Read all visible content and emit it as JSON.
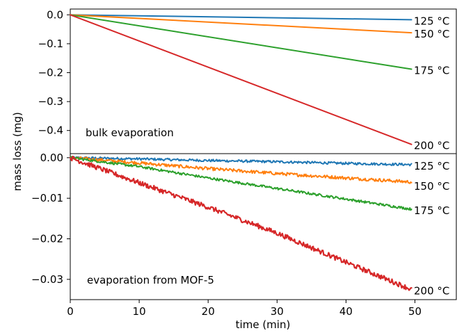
{
  "chart_data": {
    "type": "line",
    "xlabel": "time (min)",
    "ylabel": "mass loss (mg)",
    "x_ticks": [
      "0",
      "10",
      "20",
      "30",
      "40",
      "50"
    ],
    "xlim": [
      0,
      56
    ],
    "panels": [
      {
        "annotation": "bulk evaporation",
        "ylim": [
          -0.48,
          0.02
        ],
        "y_ticks": [
          {
            "value": 0.0,
            "label": "0.0"
          },
          {
            "value": -0.1,
            "label": "−0.1"
          },
          {
            "value": -0.2,
            "label": "−0.2"
          },
          {
            "value": -0.3,
            "label": "−0.3"
          },
          {
            "value": -0.4,
            "label": "−0.4"
          }
        ],
        "noise": 0,
        "series": [
          {
            "name": "125 °C",
            "color": "#1f77b4",
            "x": [
              0,
              49.5
            ],
            "y": [
              0,
              -0.017
            ]
          },
          {
            "name": "150 °C",
            "color": "#ff7f0e",
            "x": [
              0,
              49.5
            ],
            "y": [
              0,
              -0.062
            ]
          },
          {
            "name": "175 °C",
            "color": "#2ca02c",
            "x": [
              0,
              49.5
            ],
            "y": [
              0,
              -0.188
            ]
          },
          {
            "name": "200 °C",
            "color": "#d62728",
            "x": [
              0,
              49.5
            ],
            "y": [
              0,
              -0.448
            ]
          }
        ]
      },
      {
        "annotation": "evaporation from MOF-5",
        "ylim": [
          -0.035,
          0.001
        ],
        "y_ticks": [
          {
            "value": 0.0,
            "label": "0.00"
          },
          {
            "value": -0.01,
            "label": "−0.01"
          },
          {
            "value": -0.02,
            "label": "−0.02"
          },
          {
            "value": -0.03,
            "label": "−0.03"
          }
        ],
        "noise": 1,
        "series": [
          {
            "name": "125 °C",
            "color": "#1f77b4",
            "x": [
              0,
              10,
              20,
              30,
              40,
              49.5
            ],
            "y": [
              0,
              -0.0003,
              -0.0007,
              -0.001,
              -0.0014,
              -0.0017
            ],
            "jitter": 0.0003
          },
          {
            "name": "150 °C",
            "color": "#ff7f0e",
            "x": [
              0,
              10,
              20,
              30,
              40,
              49.5
            ],
            "y": [
              0,
              -0.0013,
              -0.0027,
              -0.0039,
              -0.005,
              -0.006
            ],
            "jitter": 0.0004
          },
          {
            "name": "175 °C",
            "color": "#2ca02c",
            "x": [
              0,
              10,
              20,
              30,
              40,
              49.5
            ],
            "y": [
              0,
              -0.0022,
              -0.005,
              -0.0076,
              -0.0102,
              -0.0127
            ],
            "jitter": 0.0003
          },
          {
            "name": "200 °C",
            "color": "#d62728",
            "x": [
              0,
              10,
              20,
              30,
              40,
              49.5
            ],
            "y": [
              0,
              -0.0062,
              -0.0122,
              -0.0186,
              -0.0258,
              -0.0325
            ],
            "jitter": 0.0006
          }
        ]
      }
    ]
  }
}
